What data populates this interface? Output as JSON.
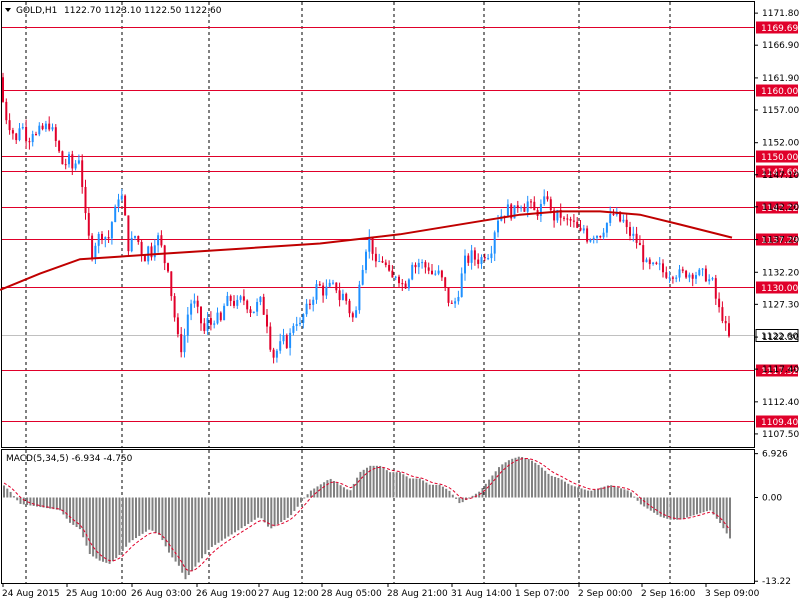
{
  "header": {
    "symbol_timeframe": "GOLD,H1",
    "ohlc": "1122.70 1123.10 1122.50 1122.60"
  },
  "macd_header": {
    "label": "MACD(5,34,5) -6.934 -4.750"
  },
  "colors": {
    "background": "#ffffff",
    "candle": "#1e90ff",
    "bear": "#e0002a",
    "level_line": "#e0002a",
    "ma_line": "#c00000",
    "histogram": "#808080",
    "signal": "#e0002a",
    "grid": "#000000"
  },
  "chart_data": [
    {
      "type": "candlestick",
      "title": "GOLD,H1",
      "ylim": [
        1105.5,
        1173.5
      ],
      "y_ticks": [
        "1171.80",
        "1166.90",
        "1161.90",
        "1157.00",
        "1152.00",
        "1147.10",
        "1142.20",
        "1137.20",
        "1132.20",
        "1127.30",
        "1122.30",
        "1117.40",
        "1112.40",
        "1107.50"
      ],
      "x_tick_labels": [
        "24 Aug 2015",
        "25 Aug 10:00",
        "26 Aug 03:00",
        "26 Aug 19:00",
        "27 Aug 12:00",
        "28 Aug 05:00",
        "28 Aug 21:00",
        "31 Aug 14:00",
        "1 Sep 07:00",
        "2 Sep 00:00",
        "2 Sep 16:00",
        "3 Sep 09:00"
      ],
      "levels": [
        {
          "value": 1169.69,
          "label": "1169.69"
        },
        {
          "value": 1160.0,
          "label": "1160.00"
        },
        {
          "value": 1150.0,
          "label": "1150.00"
        },
        {
          "value": 1147.69,
          "label": "1147.69"
        },
        {
          "value": 1142.22,
          "label": "1142.22"
        },
        {
          "value": 1137.29,
          "label": "1137.29"
        },
        {
          "value": 1130.0,
          "label": "1130.00"
        },
        {
          "value": 1117.32,
          "label": "1117.32"
        },
        {
          "value": 1109.4,
          "label": "1109.40"
        }
      ],
      "current_price": {
        "value": 1122.6,
        "label": "1122.60"
      },
      "close_path": [
        [
          0,
          1162
        ],
        [
          4,
          1157
        ],
        [
          8,
          1155
        ],
        [
          12,
          1154
        ],
        [
          16,
          1152
        ],
        [
          20,
          1155
        ],
        [
          24,
          1154
        ],
        [
          28,
          1152
        ],
        [
          32,
          1154
        ],
        [
          36,
          1153
        ],
        [
          40,
          1154
        ],
        [
          44,
          1154
        ],
        [
          48,
          1155
        ],
        [
          52,
          1154
        ],
        [
          56,
          1152
        ],
        [
          60,
          1150
        ],
        [
          64,
          1148
        ],
        [
          68,
          1150
        ],
        [
          72,
          1148
        ],
        [
          76,
          1149
        ],
        [
          80,
          1150
        ],
        [
          84,
          1142
        ],
        [
          88,
          1138
        ],
        [
          92,
          1135
        ],
        [
          96,
          1137
        ],
        [
          100,
          1138
        ],
        [
          104,
          1138
        ],
        [
          108,
          1137
        ],
        [
          112,
          1140
        ],
        [
          116,
          1142
        ],
        [
          120,
          1145
        ],
        [
          124,
          1142
        ],
        [
          128,
          1136
        ],
        [
          132,
          1137
        ],
        [
          136,
          1138
        ],
        [
          140,
          1136
        ],
        [
          144,
          1134
        ],
        [
          148,
          1136
        ],
        [
          152,
          1135
        ],
        [
          156,
          1138
        ],
        [
          160,
          1137
        ],
        [
          164,
          1134
        ],
        [
          168,
          1133
        ],
        [
          172,
          1128
        ],
        [
          176,
          1124
        ],
        [
          180,
          1120
        ],
        [
          184,
          1122
        ],
        [
          188,
          1126
        ],
        [
          192,
          1128
        ],
        [
          196,
          1127
        ],
        [
          200,
          1125
        ],
        [
          204,
          1123
        ],
        [
          208,
          1125
        ],
        [
          212,
          1124
        ],
        [
          216,
          1126
        ],
        [
          220,
          1124
        ],
        [
          224,
          1127
        ],
        [
          228,
          1128
        ],
        [
          232,
          1128
        ],
        [
          236,
          1127
        ],
        [
          240,
          1128
        ],
        [
          244,
          1128
        ],
        [
          248,
          1127
        ],
        [
          252,
          1126
        ],
        [
          256,
          1127
        ],
        [
          260,
          1128
        ],
        [
          264,
          1126
        ],
        [
          268,
          1124
        ],
        [
          272,
          1119
        ],
        [
          276,
          1120
        ],
        [
          280,
          1121
        ],
        [
          284,
          1122
        ],
        [
          288,
          1121
        ],
        [
          292,
          1124
        ],
        [
          296,
          1125
        ],
        [
          300,
          1124
        ],
        [
          304,
          1126
        ],
        [
          308,
          1127
        ],
        [
          312,
          1128
        ],
        [
          316,
          1130
        ],
        [
          320,
          1130
        ],
        [
          324,
          1129
        ],
        [
          328,
          1130
        ],
        [
          332,
          1130
        ],
        [
          336,
          1130
        ],
        [
          340,
          1128
        ],
        [
          344,
          1129
        ],
        [
          348,
          1127
        ],
        [
          352,
          1125
        ],
        [
          356,
          1126
        ],
        [
          360,
          1132
        ],
        [
          364,
          1134
        ],
        [
          368,
          1138
        ],
        [
          372,
          1136
        ],
        [
          376,
          1133
        ],
        [
          380,
          1134
        ],
        [
          384,
          1134
        ],
        [
          388,
          1132
        ],
        [
          392,
          1131
        ],
        [
          396,
          1132
        ],
        [
          400,
          1131
        ],
        [
          404,
          1130
        ],
        [
          408,
          1131
        ],
        [
          412,
          1134
        ],
        [
          416,
          1133
        ],
        [
          420,
          1134
        ],
        [
          424,
          1133
        ],
        [
          428,
          1133
        ],
        [
          432,
          1132
        ],
        [
          436,
          1132
        ],
        [
          440,
          1132
        ],
        [
          444,
          1130
        ],
        [
          448,
          1128
        ],
        [
          452,
          1127
        ],
        [
          456,
          1128
        ],
        [
          460,
          1130
        ],
        [
          464,
          1134
        ],
        [
          468,
          1134
        ],
        [
          472,
          1135
        ],
        [
          476,
          1134
        ],
        [
          480,
          1134
        ],
        [
          484,
          1135
        ],
        [
          488,
          1135
        ],
        [
          492,
          1136
        ],
        [
          496,
          1140
        ],
        [
          500,
          1141
        ],
        [
          504,
          1141
        ],
        [
          508,
          1142
        ],
        [
          512,
          1141
        ],
        [
          516,
          1142
        ],
        [
          520,
          1143
        ],
        [
          524,
          1142
        ],
        [
          528,
          1143
        ],
        [
          532,
          1142
        ],
        [
          536,
          1141
        ],
        [
          540,
          1142
        ],
        [
          544,
          1143
        ],
        [
          548,
          1144
        ],
        [
          552,
          1140
        ],
        [
          556,
          1141
        ],
        [
          560,
          1141
        ],
        [
          564,
          1140
        ],
        [
          568,
          1140
        ],
        [
          572,
          1140
        ],
        [
          576,
          1139
        ],
        [
          580,
          1138
        ],
        [
          584,
          1139
        ],
        [
          588,
          1137
        ],
        [
          592,
          1138
        ],
        [
          596,
          1138
        ],
        [
          600,
          1138
        ],
        [
          604,
          1139
        ],
        [
          608,
          1140
        ],
        [
          612,
          1141
        ],
        [
          616,
          1141
        ],
        [
          620,
          1140
        ],
        [
          624,
          1140
        ],
        [
          628,
          1138
        ],
        [
          632,
          1138
        ],
        [
          636,
          1137
        ],
        [
          640,
          1136
        ],
        [
          644,
          1134
        ],
        [
          648,
          1133
        ],
        [
          652,
          1133
        ],
        [
          656,
          1133
        ],
        [
          660,
          1133
        ],
        [
          664,
          1132
        ],
        [
          668,
          1132
        ],
        [
          672,
          1132
        ],
        [
          676,
          1132
        ],
        [
          680,
          1132
        ],
        [
          684,
          1132
        ],
        [
          688,
          1132
        ],
        [
          692,
          1132
        ],
        [
          696,
          1132
        ],
        [
          700,
          1132
        ],
        [
          704,
          1132
        ],
        [
          708,
          1131
        ],
        [
          712,
          1131
        ],
        [
          716,
          1128
        ],
        [
          720,
          1126
        ],
        [
          724,
          1125
        ],
        [
          728,
          1122
        ],
        [
          732,
          1122.6
        ]
      ],
      "moving_average": [
        [
          0,
          1129.5
        ],
        [
          40,
          1132
        ],
        [
          80,
          1134.2
        ],
        [
          120,
          1134.6
        ],
        [
          160,
          1135.0
        ],
        [
          240,
          1135.8
        ],
        [
          320,
          1136.6
        ],
        [
          400,
          1138.0
        ],
        [
          480,
          1140.0
        ],
        [
          520,
          1141.0
        ],
        [
          560,
          1141.5
        ],
        [
          600,
          1141.5
        ],
        [
          640,
          1141.0
        ],
        [
          680,
          1139.5
        ],
        [
          732,
          1137.5
        ]
      ]
    },
    {
      "type": "bar",
      "title": "MACD(5,34,5) -6.934 -4.750",
      "ylim": [
        -13.5,
        7.5
      ],
      "y_ticks": [
        "6.926",
        "0.00",
        "-13.22"
      ],
      "histogram_profile": [
        [
          0,
          2.5
        ],
        [
          10,
          1
        ],
        [
          20,
          -1
        ],
        [
          40,
          -1.5
        ],
        [
          60,
          -2
        ],
        [
          70,
          -4
        ],
        [
          80,
          -5
        ],
        [
          90,
          -9
        ],
        [
          100,
          -10
        ],
        [
          110,
          -10.5
        ],
        [
          120,
          -9
        ],
        [
          130,
          -7
        ],
        [
          140,
          -6
        ],
        [
          150,
          -5
        ],
        [
          160,
          -6
        ],
        [
          170,
          -9
        ],
        [
          180,
          -11
        ],
        [
          185,
          -13
        ],
        [
          190,
          -12
        ],
        [
          200,
          -10
        ],
        [
          210,
          -8
        ],
        [
          220,
          -7
        ],
        [
          230,
          -6
        ],
        [
          240,
          -5
        ],
        [
          250,
          -4
        ],
        [
          260,
          -3
        ],
        [
          270,
          -5
        ],
        [
          280,
          -4
        ],
        [
          290,
          -3
        ],
        [
          300,
          -1
        ],
        [
          310,
          1
        ],
        [
          320,
          2
        ],
        [
          330,
          3
        ],
        [
          340,
          2
        ],
        [
          350,
          1
        ],
        [
          360,
          4
        ],
        [
          370,
          5
        ],
        [
          380,
          5
        ],
        [
          390,
          4
        ],
        [
          400,
          4
        ],
        [
          410,
          3
        ],
        [
          420,
          3
        ],
        [
          430,
          2
        ],
        [
          440,
          2
        ],
        [
          450,
          1
        ],
        [
          460,
          -1
        ],
        [
          470,
          0
        ],
        [
          480,
          1
        ],
        [
          490,
          3
        ],
        [
          500,
          5
        ],
        [
          510,
          6
        ],
        [
          520,
          6.5
        ],
        [
          530,
          6
        ],
        [
          540,
          5
        ],
        [
          550,
          3.5
        ],
        [
          560,
          3
        ],
        [
          570,
          2
        ],
        [
          580,
          1.5
        ],
        [
          590,
          1
        ],
        [
          600,
          1.5
        ],
        [
          610,
          2
        ],
        [
          620,
          1.5
        ],
        [
          630,
          1
        ],
        [
          640,
          -1
        ],
        [
          650,
          -2
        ],
        [
          660,
          -3
        ],
        [
          670,
          -3.5
        ],
        [
          680,
          -3.5
        ],
        [
          690,
          -3
        ],
        [
          700,
          -2.5
        ],
        [
          710,
          -2
        ],
        [
          720,
          -4
        ],
        [
          728,
          -6
        ],
        [
          732,
          -6.934
        ]
      ]
    }
  ]
}
